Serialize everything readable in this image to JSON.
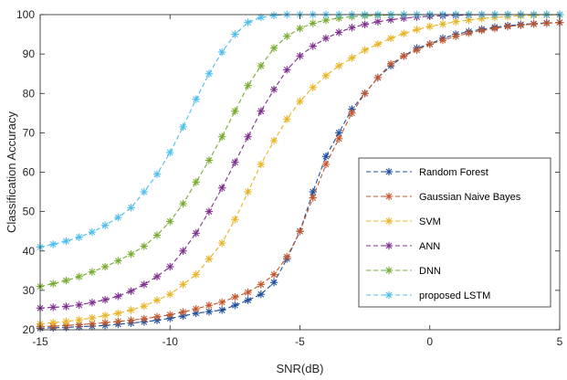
{
  "chart_data": {
    "type": "line",
    "title": "",
    "xlabel": "SNR(dB)",
    "ylabel": "Classification Accuracy",
    "xlim": [
      -15,
      5
    ],
    "ylim": [
      20,
      100
    ],
    "xticks": [
      -15,
      -10,
      -5,
      0,
      5
    ],
    "yticks": [
      20,
      30,
      40,
      50,
      60,
      70,
      80,
      90,
      100
    ],
    "grid": false,
    "legend_position": "lower-right",
    "marker": "asterisk",
    "line_style": "dashed",
    "x": [
      -15,
      -14.5,
      -14,
      -13.5,
      -13,
      -12.5,
      -12,
      -11.5,
      -11,
      -10.5,
      -10,
      -9.5,
      -9,
      -8.5,
      -8,
      -7.5,
      -7,
      -6.5,
      -6,
      -5.5,
      -5,
      -4.5,
      -4,
      -3.5,
      -3,
      -2.5,
      -2,
      -1.5,
      -1,
      -0.5,
      0,
      0.5,
      1,
      1.5,
      2,
      2.5,
      3,
      3.5,
      4,
      4.5,
      5
    ],
    "series": [
      {
        "name": "Random Forest",
        "color": "#1f4e9c",
        "values": [
          20.4,
          20.5,
          20.6,
          20.8,
          20.9,
          21.1,
          21.4,
          21.7,
          22.0,
          22.4,
          22.9,
          23.5,
          24.2,
          24.6,
          25.0,
          26.2,
          27.5,
          29.0,
          32.0,
          38.0,
          45.0,
          55.0,
          64.0,
          70.0,
          76.0,
          80.0,
          84.0,
          87.0,
          89.5,
          91.5,
          92.5,
          94.0,
          95.0,
          95.7,
          96.3,
          96.8,
          97.2,
          97.5,
          97.7,
          97.9,
          98.0
        ]
      },
      {
        "name": "Gaussian Naive Bayes",
        "color": "#c4562a",
        "values": [
          20.8,
          20.9,
          21.1,
          21.3,
          21.5,
          21.8,
          22.1,
          22.4,
          22.8,
          23.3,
          23.8,
          24.5,
          25.3,
          26.2,
          27.0,
          28.3,
          29.5,
          31.5,
          34.0,
          38.5,
          45.0,
          53.5,
          62.0,
          68.5,
          75.0,
          80.0,
          84.0,
          87.5,
          89.5,
          91.0,
          92.5,
          93.5,
          94.5,
          95.3,
          96.0,
          96.5,
          97.0,
          97.3,
          97.6,
          97.8,
          98.0
        ]
      },
      {
        "name": "SVM",
        "color": "#e8b424",
        "values": [
          21.5,
          21.8,
          22.1,
          22.5,
          23.0,
          23.6,
          24.2,
          25.0,
          26.0,
          27.5,
          29.0,
          31.5,
          34.0,
          38.0,
          42.0,
          48.0,
          55.0,
          62.0,
          68.0,
          73.5,
          78.0,
          81.5,
          84.5,
          87.0,
          89.0,
          91.0,
          92.5,
          94.0,
          95.2,
          96.2,
          97.0,
          97.6,
          98.2,
          98.6,
          99.0,
          99.3,
          99.5,
          99.7,
          99.8,
          99.9,
          100.0
        ]
      },
      {
        "name": "ANN",
        "color": "#7e2f8e",
        "values": [
          25.5,
          25.7,
          25.9,
          26.3,
          26.9,
          27.6,
          28.5,
          29.8,
          31.5,
          33.5,
          36.0,
          40.0,
          44.5,
          50.0,
          56.0,
          62.5,
          69.0,
          75.5,
          81.0,
          86.0,
          89.5,
          92.0,
          94.0,
          95.5,
          96.7,
          97.5,
          98.2,
          98.7,
          99.1,
          99.4,
          99.6,
          99.7,
          99.8,
          99.9,
          100.0,
          100.0,
          100.0,
          100.0,
          100.0,
          100.0,
          100.0
        ]
      },
      {
        "name": "DNN",
        "color": "#77ac30",
        "values": [
          31.0,
          31.7,
          32.5,
          33.5,
          34.7,
          36.0,
          37.5,
          39.2,
          41.2,
          44.0,
          47.5,
          52.0,
          57.5,
          63.0,
          69.0,
          75.5,
          82.0,
          87.0,
          91.5,
          94.5,
          96.5,
          97.8,
          98.6,
          99.1,
          99.5,
          99.7,
          99.8,
          99.9,
          100.0,
          100.0,
          100.0,
          100.0,
          100.0,
          100.0,
          100.0,
          100.0,
          100.0,
          100.0,
          100.0,
          100.0,
          100.0
        ]
      },
      {
        "name": "proposed LSTM",
        "color": "#4dbeee",
        "values": [
          41.0,
          41.7,
          42.5,
          43.5,
          44.8,
          46.5,
          48.5,
          51.0,
          55.0,
          59.5,
          65.0,
          71.5,
          78.5,
          85.0,
          90.5,
          95.0,
          98.0,
          99.3,
          99.8,
          100.0,
          100.0,
          100.0,
          100.0,
          100.0,
          100.0,
          100.0,
          100.0,
          100.0,
          100.0,
          100.0,
          100.0,
          100.0,
          100.0,
          100.0,
          100.0,
          100.0,
          100.0,
          100.0,
          100.0,
          100.0,
          100.0
        ]
      }
    ]
  }
}
